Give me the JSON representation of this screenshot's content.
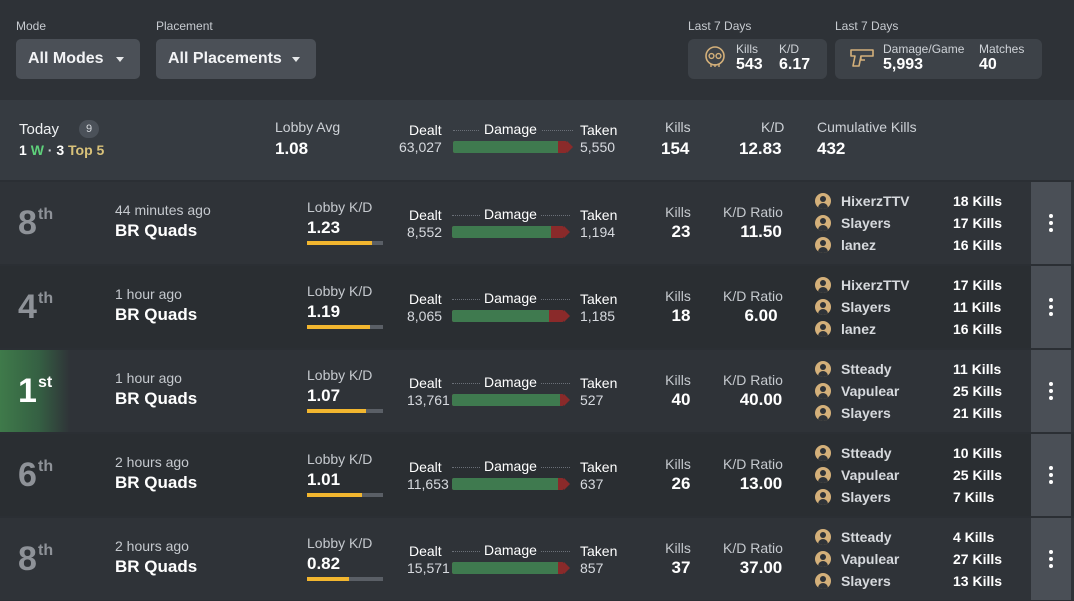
{
  "filters": {
    "mode": {
      "label": "Mode",
      "value": "All Modes"
    },
    "placement": {
      "label": "Placement",
      "value": "All Placements"
    }
  },
  "last7": {
    "kills_card": {
      "period_label": "Last 7 Days",
      "icon": "skull-icon",
      "kills_label": "Kills",
      "kills_value": "543",
      "kd_label": "K/D",
      "kd_value": "6.17"
    },
    "damage_card": {
      "period_label": "Last 7 Days",
      "icon": "pistol-icon",
      "dmg_label": "Damage/Game",
      "dmg_value": "5,993",
      "matches_label": "Matches",
      "matches_value": "40"
    }
  },
  "today": {
    "title": "Today",
    "match_count": "9",
    "wins_count": "1",
    "wins_letter": "W",
    "separator": "·",
    "top5_count": "3",
    "top5_label": "Top 5",
    "lobby_avg_label": "Lobby Avg",
    "lobby_avg_value": "1.08",
    "dealt_label": "Dealt",
    "dealt_value": "63,027",
    "damage_label": "Damage",
    "taken_label": "Taken",
    "taken_value": "5,550",
    "damage_fraction": 0.92,
    "kills_label": "Kills",
    "kills_value": "154",
    "kd_label": "K/D",
    "kd_value": "12.83",
    "cumulative_label": "Cumulative Kills",
    "cumulative_value": "432"
  },
  "labels": {
    "lobby_kd": "Lobby K/D",
    "dealt": "Dealt",
    "damage": "Damage",
    "taken": "Taken",
    "kills": "Kills",
    "kd_ratio": "K/D Ratio"
  },
  "colors": {
    "win_green": "#3f7a4a",
    "wins_text": "#5ed07a",
    "top5_text": "#d9c27a",
    "lobby_bar": "#f2b62f",
    "damage_dealt": "#3f7a4f",
    "damage_taken": "#8a2a2a"
  },
  "matches": [
    {
      "place": "8",
      "suffix": "th",
      "win": false,
      "time": "44 minutes ago",
      "mode": "BR Quads",
      "lobby_kd": "1.23",
      "lobby_kd_fraction": 0.85,
      "dealt": "8,552",
      "taken": "1,194",
      "damage_fraction": 0.88,
      "kills": "23",
      "kd_ratio": "11.50",
      "team": [
        {
          "name": "HixerzTTV",
          "kills": "18 Kills"
        },
        {
          "name": "Slayers",
          "kills": "17 Kills"
        },
        {
          "name": "lanez",
          "kills": "16 Kills"
        }
      ]
    },
    {
      "place": "4",
      "suffix": "th",
      "win": false,
      "time": "1 hour ago",
      "mode": "BR Quads",
      "lobby_kd": "1.19",
      "lobby_kd_fraction": 0.83,
      "dealt": "8,065",
      "taken": "1,185",
      "damage_fraction": 0.87,
      "kills": "18",
      "kd_ratio": "6.00",
      "team": [
        {
          "name": "HixerzTTV",
          "kills": "17 Kills"
        },
        {
          "name": "Slayers",
          "kills": "11 Kills"
        },
        {
          "name": "lanez",
          "kills": "16 Kills"
        }
      ]
    },
    {
      "place": "1",
      "suffix": "st",
      "win": true,
      "time": "1 hour ago",
      "mode": "BR Quads",
      "lobby_kd": "1.07",
      "lobby_kd_fraction": 0.77,
      "dealt": "13,761",
      "taken": "527",
      "damage_fraction": 0.96,
      "kills": "40",
      "kd_ratio": "40.00",
      "team": [
        {
          "name": "Stteady",
          "kills": "11 Kills"
        },
        {
          "name": "Vapulear",
          "kills": "25 Kills"
        },
        {
          "name": "Slayers",
          "kills": "21 Kills"
        }
      ]
    },
    {
      "place": "6",
      "suffix": "th",
      "win": false,
      "time": "2 hours ago",
      "mode": "BR Quads",
      "lobby_kd": "1.01",
      "lobby_kd_fraction": 0.73,
      "dealt": "11,653",
      "taken": "637",
      "damage_fraction": 0.95,
      "kills": "26",
      "kd_ratio": "13.00",
      "team": [
        {
          "name": "Stteady",
          "kills": "10 Kills"
        },
        {
          "name": "Vapulear",
          "kills": "25 Kills"
        },
        {
          "name": "Slayers",
          "kills": "7 Kills"
        }
      ]
    },
    {
      "place": "8",
      "suffix": "th",
      "win": false,
      "time": "2 hours ago",
      "mode": "BR Quads",
      "lobby_kd": "0.82",
      "lobby_kd_fraction": 0.55,
      "dealt": "15,571",
      "taken": "857",
      "damage_fraction": 0.95,
      "kills": "37",
      "kd_ratio": "37.00",
      "team": [
        {
          "name": "Stteady",
          "kills": "4 Kills"
        },
        {
          "name": "Vapulear",
          "kills": "27 Kills"
        },
        {
          "name": "Slayers",
          "kills": "13 Kills"
        }
      ]
    }
  ]
}
